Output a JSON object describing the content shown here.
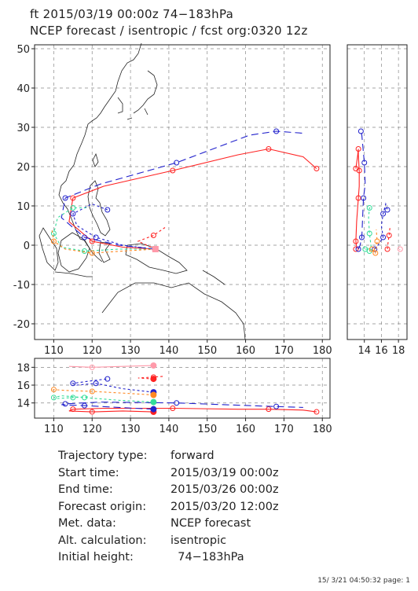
{
  "header": {
    "line1": "ft 2015/03/19 00:00z  74−183hPa",
    "line2": "NCEP forecast / isentropic / fcst org:0320 12z"
  },
  "colors": {
    "red": "#ff2222",
    "blue": "#2222cc",
    "cyan": "#33dd99",
    "orange": "#ff8822",
    "pink": "#ff9aaa",
    "grid": "#888888",
    "coast": "#222222"
  },
  "chart_data": {
    "type": "line",
    "main_map": {
      "xlim": [
        105,
        182
      ],
      "ylim": [
        -24,
        51
      ],
      "xticks": [
        110,
        120,
        130,
        140,
        150,
        160,
        170,
        180
      ],
      "yticks": [
        50,
        40,
        30,
        20,
        10,
        0,
        -10,
        -20
      ],
      "grid": true
    },
    "side_panel": {
      "xticks": [
        14,
        16,
        18
      ],
      "x_range": [
        12,
        19
      ]
    },
    "height_panel": {
      "xlim": [
        105,
        182
      ],
      "ylim": [
        12.3,
        19
      ],
      "xticks": [
        110,
        120,
        130,
        140,
        150,
        160,
        170,
        180
      ],
      "yticks": [
        18,
        16,
        14
      ]
    },
    "series": [
      {
        "color": "red",
        "dash": "solid",
        "points": [
          [
            136.5,
            -1
          ],
          [
            128,
            -0.5
          ],
          [
            120,
            1
          ],
          [
            114,
            6
          ],
          [
            115,
            12
          ],
          [
            123,
            15
          ],
          [
            141,
            19
          ],
          [
            158,
            23
          ],
          [
            166,
            24.5
          ],
          [
            175,
            22.5
          ],
          [
            178.5,
            19.5
          ]
        ]
      },
      {
        "color": "blue",
        "dash": "long",
        "points": [
          [
            136.5,
            -1
          ],
          [
            127,
            0
          ],
          [
            118,
            2
          ],
          [
            112,
            7
          ],
          [
            113,
            12
          ],
          [
            122,
            15.5
          ],
          [
            142,
            21
          ],
          [
            161,
            28
          ],
          [
            168,
            29
          ],
          [
            175,
            28.5
          ]
        ]
      },
      {
        "color": "blue",
        "dash": "short",
        "points": [
          [
            136.5,
            -1
          ],
          [
            128,
            0
          ],
          [
            121,
            2
          ],
          [
            116,
            5
          ],
          [
            115,
            8
          ],
          [
            120,
            10.5
          ],
          [
            124,
            9
          ]
        ]
      },
      {
        "color": "cyan",
        "dash": "short",
        "points": [
          [
            136.5,
            -1
          ],
          [
            127,
            -1
          ],
          [
            118,
            -1.5
          ],
          [
            112,
            -0.5
          ],
          [
            110,
            3
          ],
          [
            111,
            7
          ],
          [
            115,
            9.5
          ],
          [
            119,
            9.5
          ]
        ]
      },
      {
        "color": "orange",
        "dash": "short",
        "points": [
          [
            136.5,
            -1
          ],
          [
            128,
            -1.5
          ],
          [
            120,
            -2
          ],
          [
            113,
            -1
          ],
          [
            110,
            1
          ],
          [
            109.5,
            4
          ]
        ]
      },
      {
        "color": "red",
        "dash": "short",
        "points": [
          [
            136.5,
            -1
          ],
          [
            132,
            1
          ],
          [
            136,
            2.5
          ],
          [
            139,
            4.5
          ]
        ]
      },
      {
        "color": "pink",
        "dash": "solid",
        "points": [
          [
            136.5,
            -1
          ],
          [
            135.5,
            -1.2
          ]
        ]
      }
    ],
    "height_series": [
      {
        "color": "red",
        "dash": "solid",
        "points": [
          [
            136,
            13.0
          ],
          [
            128,
            13.1
          ],
          [
            120,
            13.0
          ],
          [
            114,
            13.1
          ],
          [
            115,
            13.3
          ],
          [
            123,
            13.4
          ],
          [
            141,
            13.4
          ],
          [
            158,
            13.3
          ],
          [
            166,
            13.3
          ],
          [
            175,
            13.2
          ],
          [
            178.5,
            13.0
          ]
        ]
      },
      {
        "color": "blue",
        "dash": "long",
        "points": [
          [
            136,
            13.3
          ],
          [
            127,
            13.5
          ],
          [
            118,
            13.7
          ],
          [
            112,
            13.8
          ],
          [
            113,
            13.9
          ],
          [
            122,
            14.1
          ],
          [
            142,
            14.0
          ],
          [
            161,
            13.7
          ],
          [
            168,
            13.6
          ],
          [
            175,
            13.5
          ]
        ]
      },
      {
        "color": "blue",
        "dash": "short",
        "points": [
          [
            136,
            15.2
          ],
          [
            128,
            15.6
          ],
          [
            121,
            16.2
          ],
          [
            116,
            16.0
          ],
          [
            115,
            16.2
          ],
          [
            120,
            16.5
          ],
          [
            124,
            16.7
          ]
        ]
      },
      {
        "color": "cyan",
        "dash": "short",
        "points": [
          [
            136,
            14.1
          ],
          [
            127,
            14.3
          ],
          [
            118,
            14.6
          ],
          [
            112,
            14.8
          ],
          [
            110,
            14.6
          ],
          [
            111,
            14.5
          ],
          [
            115,
            14.6
          ],
          [
            119,
            14.7
          ]
        ]
      },
      {
        "color": "orange",
        "dash": "short",
        "points": [
          [
            136,
            14.9
          ],
          [
            128,
            15.1
          ],
          [
            120,
            15.3
          ],
          [
            113,
            15.4
          ],
          [
            110,
            15.5
          ],
          [
            109.5,
            15.4
          ]
        ]
      },
      {
        "color": "red",
        "dash": "short",
        "points": [
          [
            136,
            16.7
          ],
          [
            132,
            16.8
          ],
          [
            136,
            16.9
          ],
          [
            139,
            17.0
          ]
        ]
      },
      {
        "color": "pink",
        "dash": "solid",
        "points": [
          [
            136,
            18.2
          ],
          [
            128,
            18.1
          ],
          [
            120,
            18.0
          ],
          [
            114,
            18.1
          ]
        ]
      }
    ]
  },
  "info": {
    "rows": [
      {
        "label": "Trajectory type:",
        "value": "forward"
      },
      {
        "label": "Start time:",
        "value": "2015/03/19 00:00z"
      },
      {
        "label": "End time:",
        "value": "2015/03/26 00:00z"
      },
      {
        "label": "Forecast origin:",
        "value": "2015/03/20 12:00z"
      },
      {
        "label": "Met. data:",
        "value": "NCEP forecast"
      },
      {
        "label": "Alt. calculation:",
        "value": "isentropic"
      },
      {
        "label": "Initial height:",
        "value": "  74−183hPa"
      }
    ]
  },
  "footer": "15/ 3/21 04:50:32 page: 1"
}
